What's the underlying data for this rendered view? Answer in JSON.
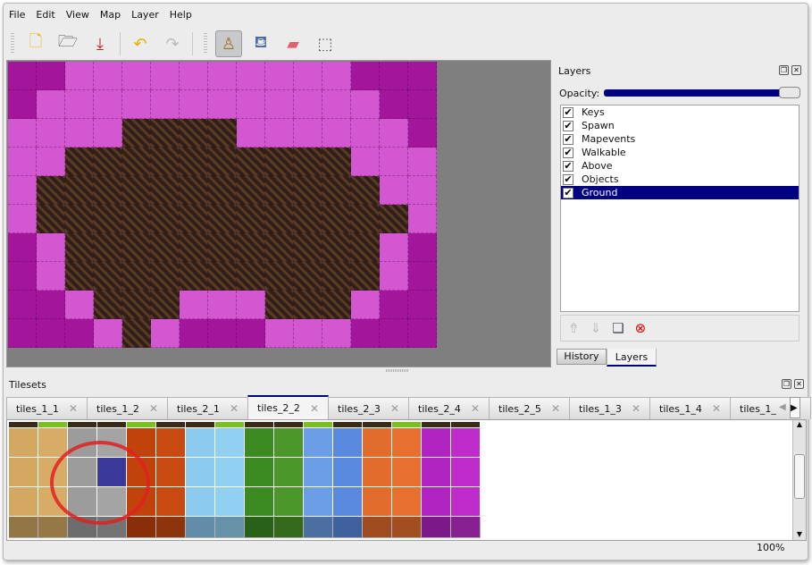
{
  "menu": [
    "File",
    "Edit",
    "View",
    "Map",
    "Layer",
    "Help"
  ],
  "toolbar": {
    "buttons": [
      {
        "name": "new-icon",
        "glyph": "🗋"
      },
      {
        "name": "open-icon",
        "glyph": "🗁"
      },
      {
        "name": "save-icon",
        "glyph": "⤓"
      },
      {
        "name": "undo-icon",
        "glyph": "↶"
      },
      {
        "name": "redo-icon",
        "glyph": "↷"
      },
      {
        "name": "stamp-brush-icon",
        "glyph": "♙",
        "active": true
      },
      {
        "name": "bucket-fill-icon",
        "glyph": "⛾"
      },
      {
        "name": "eraser-icon",
        "glyph": "▰"
      },
      {
        "name": "rect-select-icon",
        "glyph": "⬚"
      }
    ]
  },
  "map": {
    "rows": [
      "DDPPPPPPPPPPDDD",
      "DPPPPPPPPPPPPDD",
      "PPPPBBBBPPPPPPD",
      "PPBBBBBBBBBBPPP",
      "PBBBBBBBBBBBBPP",
      "PBBBBBBBBBBBBBP",
      "DPBBBBBBBBBBBPD",
      "DPBBBBBBBBBBBPD",
      "DDPBBBPPPBBBPDD",
      "DDDPBPDDDPPPDDD"
    ]
  },
  "layers_panel": {
    "title": "Layers",
    "opacity_label": "Opacity:",
    "opacity": 1.0,
    "layers": [
      {
        "name": "Keys",
        "visible": true
      },
      {
        "name": "Spawn",
        "visible": true
      },
      {
        "name": "Mapevents",
        "visible": true
      },
      {
        "name": "Walkable",
        "visible": true
      },
      {
        "name": "Above",
        "visible": true
      },
      {
        "name": "Objects",
        "visible": true
      },
      {
        "name": "Ground",
        "visible": true,
        "selected": true
      }
    ],
    "tabs": [
      "History",
      "Layers"
    ],
    "active_tab": "Layers"
  },
  "tilesets_panel": {
    "title": "Tilesets",
    "tabs": [
      "tiles_1_1",
      "tiles_1_2",
      "tiles_2_1",
      "tiles_2_2",
      "tiles_2_3",
      "tiles_2_4",
      "tiles_2_5",
      "tiles_1_3",
      "tiles_1_4",
      "tiles_1_"
    ],
    "active_tab": "tiles_2_2",
    "column_colors": [
      "#d2a862",
      "#d6ac66",
      "#9c9c9c",
      "#a4a4a4",
      "#c2420c",
      "#c84a10",
      "#8ccaf0",
      "#92d0f2",
      "#3c8a22",
      "#4a9628",
      "#6c9ee8",
      "#5a8ae0",
      "#e26c2c",
      "#e8702e",
      "#b024c2",
      "#c02ccc"
    ],
    "selected_color": "#3a3a9a"
  },
  "status": {
    "zoom": "100%"
  },
  "colors": {
    "accent": "#000080"
  }
}
